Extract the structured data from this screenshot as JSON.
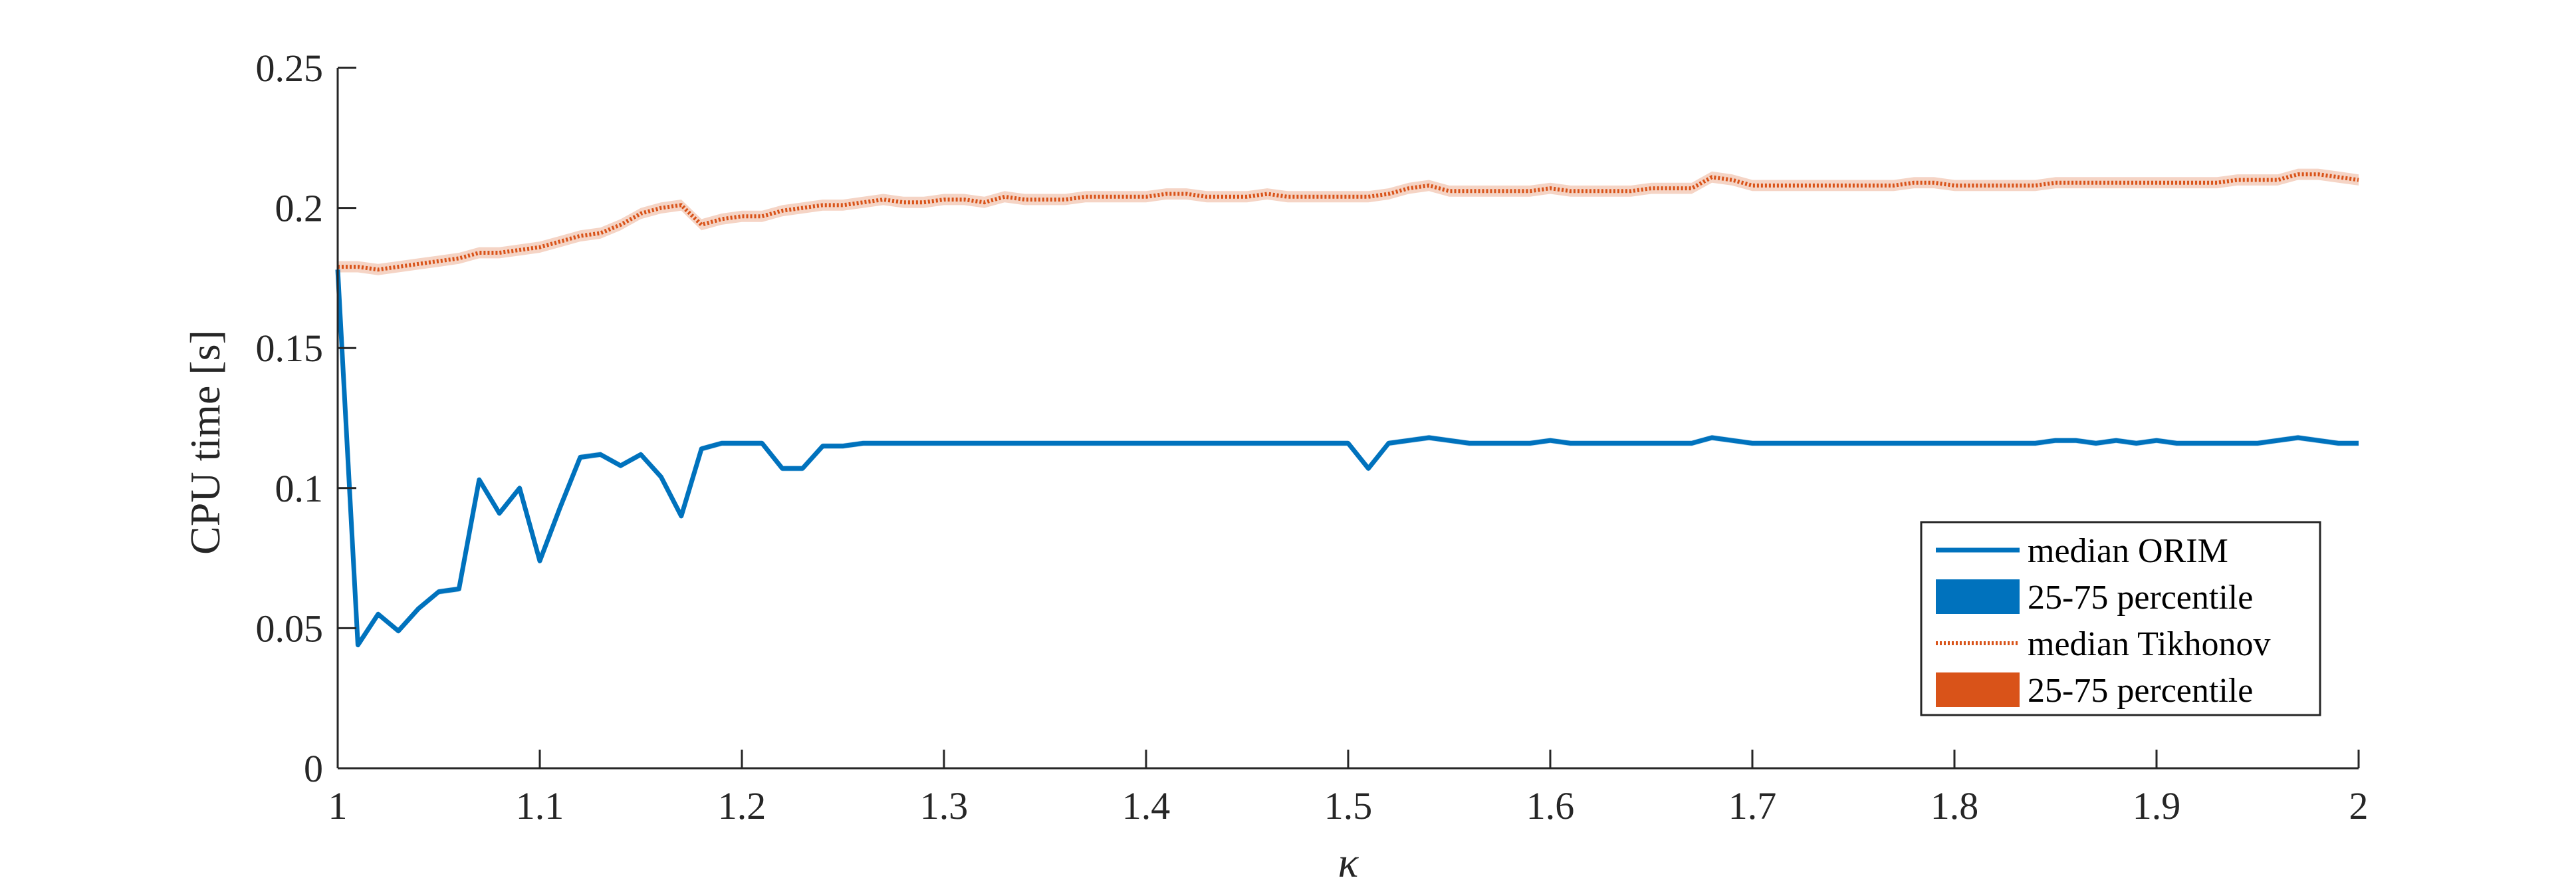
{
  "chart_data": {
    "type": "line",
    "xlabel": "κ",
    "ylabel": "CPU time [s]",
    "xlim": [
      1,
      2
    ],
    "ylim": [
      0,
      0.25
    ],
    "xticks": [
      "1",
      "1.1",
      "1.2",
      "1.3",
      "1.4",
      "1.5",
      "1.6",
      "1.7",
      "1.8",
      "1.9",
      "2"
    ],
    "yticks": [
      "0",
      "0.05",
      "0.1",
      "0.15",
      "0.2",
      "0.25"
    ],
    "grid": false,
    "legend_position": "bottom-right",
    "colors": {
      "orim": "#0072BD",
      "tikhonov": "#D95319",
      "axis": "#262626"
    },
    "series": [
      {
        "name": "median ORIM",
        "band_name": "25-75 percentile",
        "x": [
          1.0,
          1.01,
          1.02,
          1.03,
          1.04,
          1.05,
          1.06,
          1.07,
          1.08,
          1.09,
          1.1,
          1.11,
          1.12,
          1.13,
          1.14,
          1.15,
          1.16,
          1.17,
          1.18,
          1.19,
          1.2,
          1.21,
          1.22,
          1.23,
          1.24,
          1.25,
          1.26,
          1.27,
          1.28,
          1.29,
          1.3,
          1.31,
          1.32,
          1.33,
          1.34,
          1.35,
          1.36,
          1.37,
          1.38,
          1.39,
          1.4,
          1.41,
          1.42,
          1.43,
          1.44,
          1.45,
          1.46,
          1.47,
          1.48,
          1.49,
          1.5,
          1.51,
          1.52,
          1.53,
          1.54,
          1.55,
          1.56,
          1.57,
          1.58,
          1.59,
          1.6,
          1.61,
          1.62,
          1.63,
          1.64,
          1.65,
          1.66,
          1.67,
          1.68,
          1.69,
          1.7,
          1.71,
          1.72,
          1.73,
          1.74,
          1.75,
          1.76,
          1.77,
          1.78,
          1.79,
          1.8,
          1.81,
          1.82,
          1.83,
          1.84,
          1.85,
          1.86,
          1.87,
          1.88,
          1.89,
          1.9,
          1.91,
          1.92,
          1.93,
          1.94,
          1.95,
          1.96,
          1.97,
          1.98,
          1.99,
          2.0
        ],
        "values": [
          0.178,
          0.044,
          0.055,
          0.049,
          0.057,
          0.063,
          0.064,
          0.103,
          0.091,
          0.1,
          0.074,
          0.093,
          0.111,
          0.112,
          0.108,
          0.112,
          0.104,
          0.09,
          0.114,
          0.116,
          0.116,
          0.116,
          0.107,
          0.107,
          0.115,
          0.115,
          0.116,
          0.116,
          0.116,
          0.116,
          0.116,
          0.116,
          0.116,
          0.116,
          0.116,
          0.116,
          0.116,
          0.116,
          0.116,
          0.116,
          0.116,
          0.116,
          0.116,
          0.116,
          0.116,
          0.116,
          0.116,
          0.116,
          0.116,
          0.116,
          0.116,
          0.107,
          0.116,
          0.117,
          0.118,
          0.117,
          0.116,
          0.116,
          0.116,
          0.116,
          0.117,
          0.116,
          0.116,
          0.116,
          0.116,
          0.116,
          0.116,
          0.116,
          0.118,
          0.117,
          0.116,
          0.116,
          0.116,
          0.116,
          0.116,
          0.116,
          0.116,
          0.116,
          0.116,
          0.116,
          0.116,
          0.116,
          0.116,
          0.116,
          0.116,
          0.117,
          0.117,
          0.116,
          0.117,
          0.116,
          0.117,
          0.116,
          0.116,
          0.116,
          0.116,
          0.116,
          0.117,
          0.118,
          0.117,
          0.116,
          0.116
        ],
        "band_lower": [
          0.175,
          0.043,
          0.054,
          0.048,
          0.056,
          0.062,
          0.063,
          0.102,
          0.09,
          0.099,
          0.073,
          0.092,
          0.11,
          0.111,
          0.107,
          0.111,
          0.103,
          0.089,
          0.113,
          0.115,
          0.115,
          0.115,
          0.106,
          0.106,
          0.114,
          0.114,
          0.115,
          0.115,
          0.115,
          0.115,
          0.115,
          0.115,
          0.115,
          0.115,
          0.115,
          0.115,
          0.115,
          0.115,
          0.115,
          0.115,
          0.115,
          0.115,
          0.115,
          0.115,
          0.115,
          0.115,
          0.115,
          0.115,
          0.115,
          0.115,
          0.115,
          0.106,
          0.115,
          0.116,
          0.117,
          0.116,
          0.115,
          0.115,
          0.115,
          0.115,
          0.116,
          0.115,
          0.115,
          0.115,
          0.115,
          0.115,
          0.115,
          0.115,
          0.117,
          0.116,
          0.115,
          0.115,
          0.115,
          0.115,
          0.115,
          0.115,
          0.115,
          0.115,
          0.115,
          0.115,
          0.115,
          0.115,
          0.115,
          0.115,
          0.115,
          0.116,
          0.116,
          0.115,
          0.116,
          0.115,
          0.116,
          0.115,
          0.115,
          0.115,
          0.115,
          0.115,
          0.116,
          0.117,
          0.116,
          0.115,
          0.115
        ],
        "band_upper": [
          0.181,
          0.045,
          0.056,
          0.05,
          0.058,
          0.064,
          0.065,
          0.104,
          0.092,
          0.101,
          0.075,
          0.094,
          0.112,
          0.113,
          0.109,
          0.113,
          0.105,
          0.091,
          0.115,
          0.117,
          0.117,
          0.117,
          0.108,
          0.108,
          0.116,
          0.116,
          0.117,
          0.117,
          0.117,
          0.117,
          0.117,
          0.117,
          0.117,
          0.117,
          0.117,
          0.117,
          0.117,
          0.117,
          0.117,
          0.117,
          0.117,
          0.117,
          0.117,
          0.117,
          0.117,
          0.117,
          0.117,
          0.117,
          0.117,
          0.117,
          0.117,
          0.108,
          0.117,
          0.118,
          0.119,
          0.118,
          0.117,
          0.117,
          0.117,
          0.117,
          0.118,
          0.117,
          0.117,
          0.117,
          0.117,
          0.117,
          0.117,
          0.117,
          0.119,
          0.118,
          0.117,
          0.117,
          0.117,
          0.117,
          0.117,
          0.117,
          0.117,
          0.117,
          0.117,
          0.117,
          0.117,
          0.117,
          0.117,
          0.117,
          0.117,
          0.118,
          0.118,
          0.117,
          0.118,
          0.117,
          0.118,
          0.117,
          0.117,
          0.117,
          0.117,
          0.117,
          0.118,
          0.119,
          0.118,
          0.117,
          0.117
        ]
      },
      {
        "name": "median Tikhonov",
        "band_name": "25-75 percentile",
        "x": [
          1.0,
          1.01,
          1.02,
          1.03,
          1.04,
          1.05,
          1.06,
          1.07,
          1.08,
          1.09,
          1.1,
          1.11,
          1.12,
          1.13,
          1.14,
          1.15,
          1.16,
          1.17,
          1.18,
          1.19,
          1.2,
          1.21,
          1.22,
          1.23,
          1.24,
          1.25,
          1.26,
          1.27,
          1.28,
          1.29,
          1.3,
          1.31,
          1.32,
          1.33,
          1.34,
          1.35,
          1.36,
          1.37,
          1.38,
          1.39,
          1.4,
          1.41,
          1.42,
          1.43,
          1.44,
          1.45,
          1.46,
          1.47,
          1.48,
          1.49,
          1.5,
          1.51,
          1.52,
          1.53,
          1.54,
          1.55,
          1.56,
          1.57,
          1.58,
          1.59,
          1.6,
          1.61,
          1.62,
          1.63,
          1.64,
          1.65,
          1.66,
          1.67,
          1.68,
          1.69,
          1.7,
          1.71,
          1.72,
          1.73,
          1.74,
          1.75,
          1.76,
          1.77,
          1.78,
          1.79,
          1.8,
          1.81,
          1.82,
          1.83,
          1.84,
          1.85,
          1.86,
          1.87,
          1.88,
          1.89,
          1.9,
          1.91,
          1.92,
          1.93,
          1.94,
          1.95,
          1.96,
          1.97,
          1.98,
          1.99,
          2.0
        ],
        "values": [
          0.179,
          0.179,
          0.178,
          0.179,
          0.18,
          0.181,
          0.182,
          0.184,
          0.184,
          0.185,
          0.186,
          0.188,
          0.19,
          0.191,
          0.194,
          0.198,
          0.2,
          0.201,
          0.194,
          0.196,
          0.197,
          0.197,
          0.199,
          0.2,
          0.201,
          0.201,
          0.202,
          0.203,
          0.202,
          0.202,
          0.203,
          0.203,
          0.202,
          0.204,
          0.203,
          0.203,
          0.203,
          0.204,
          0.204,
          0.204,
          0.204,
          0.205,
          0.205,
          0.204,
          0.204,
          0.204,
          0.205,
          0.204,
          0.204,
          0.204,
          0.204,
          0.204,
          0.205,
          0.207,
          0.208,
          0.206,
          0.206,
          0.206,
          0.206,
          0.206,
          0.207,
          0.206,
          0.206,
          0.206,
          0.206,
          0.207,
          0.207,
          0.207,
          0.211,
          0.21,
          0.208,
          0.208,
          0.208,
          0.208,
          0.208,
          0.208,
          0.208,
          0.208,
          0.209,
          0.209,
          0.208,
          0.208,
          0.208,
          0.208,
          0.208,
          0.209,
          0.209,
          0.209,
          0.209,
          0.209,
          0.209,
          0.209,
          0.209,
          0.209,
          0.21,
          0.21,
          0.21,
          0.212,
          0.212,
          0.211,
          0.21
        ],
        "band_lower": [
          0.177,
          0.177,
          0.176,
          0.177,
          0.178,
          0.179,
          0.18,
          0.182,
          0.182,
          0.183,
          0.184,
          0.186,
          0.188,
          0.189,
          0.192,
          0.196,
          0.198,
          0.199,
          0.192,
          0.194,
          0.195,
          0.195,
          0.197,
          0.198,
          0.199,
          0.199,
          0.2,
          0.201,
          0.2,
          0.2,
          0.201,
          0.201,
          0.2,
          0.202,
          0.201,
          0.201,
          0.201,
          0.202,
          0.202,
          0.202,
          0.202,
          0.203,
          0.203,
          0.202,
          0.202,
          0.202,
          0.203,
          0.202,
          0.202,
          0.202,
          0.202,
          0.202,
          0.203,
          0.205,
          0.206,
          0.204,
          0.204,
          0.204,
          0.204,
          0.204,
          0.205,
          0.204,
          0.204,
          0.204,
          0.204,
          0.205,
          0.205,
          0.205,
          0.209,
          0.208,
          0.206,
          0.206,
          0.206,
          0.206,
          0.206,
          0.206,
          0.206,
          0.206,
          0.207,
          0.207,
          0.206,
          0.206,
          0.206,
          0.206,
          0.206,
          0.207,
          0.207,
          0.207,
          0.207,
          0.207,
          0.207,
          0.207,
          0.207,
          0.207,
          0.208,
          0.208,
          0.208,
          0.21,
          0.21,
          0.209,
          0.208
        ],
        "band_upper": [
          0.181,
          0.181,
          0.18,
          0.181,
          0.182,
          0.183,
          0.184,
          0.186,
          0.186,
          0.187,
          0.188,
          0.19,
          0.192,
          0.193,
          0.196,
          0.2,
          0.202,
          0.203,
          0.196,
          0.198,
          0.199,
          0.199,
          0.201,
          0.202,
          0.203,
          0.203,
          0.204,
          0.205,
          0.204,
          0.204,
          0.205,
          0.205,
          0.204,
          0.206,
          0.205,
          0.205,
          0.205,
          0.206,
          0.206,
          0.206,
          0.206,
          0.207,
          0.207,
          0.206,
          0.206,
          0.206,
          0.207,
          0.206,
          0.206,
          0.206,
          0.206,
          0.206,
          0.207,
          0.209,
          0.21,
          0.208,
          0.208,
          0.208,
          0.208,
          0.208,
          0.209,
          0.208,
          0.208,
          0.208,
          0.208,
          0.209,
          0.209,
          0.209,
          0.213,
          0.212,
          0.21,
          0.21,
          0.21,
          0.21,
          0.21,
          0.21,
          0.21,
          0.21,
          0.211,
          0.211,
          0.21,
          0.21,
          0.21,
          0.21,
          0.21,
          0.211,
          0.211,
          0.211,
          0.211,
          0.211,
          0.211,
          0.211,
          0.211,
          0.211,
          0.212,
          0.212,
          0.212,
          0.214,
          0.214,
          0.213,
          0.212
        ]
      }
    ]
  }
}
